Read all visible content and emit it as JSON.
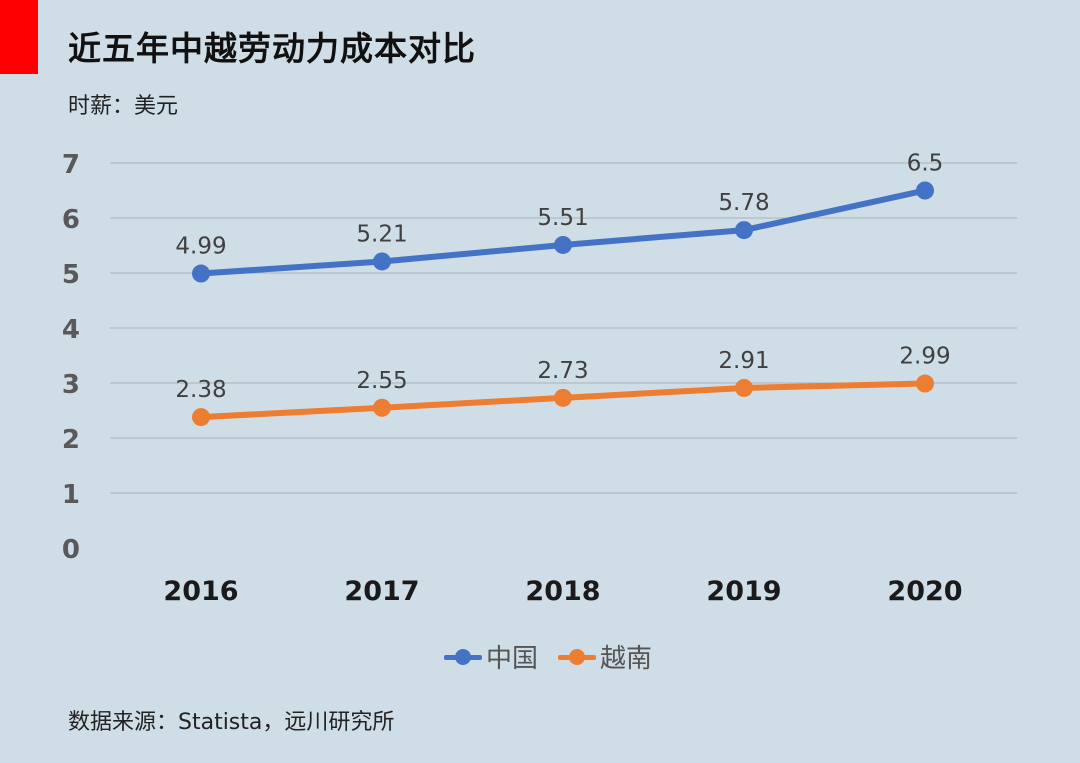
{
  "title": "近五年中越劳动力成本对比",
  "subtitle": "时薪：美元",
  "source": "数据来源：Statista，远川研究所",
  "colors": {
    "accent": "#ff0000",
    "china": "#4472c4",
    "vietnam": "#ed7d31",
    "background": "#cfdde6"
  },
  "chart_data": {
    "type": "line",
    "title": "近五年中越劳动力成本对比",
    "ylabel": "时薪：美元",
    "categories": [
      "2016",
      "2017",
      "2018",
      "2019",
      "2020"
    ],
    "ylim": [
      0,
      7
    ],
    "yticks": [
      "0",
      "1",
      "2",
      "3",
      "4",
      "5",
      "6",
      "7"
    ],
    "grid": true,
    "legend": "bottom",
    "series": [
      {
        "name": "中国",
        "values": [
          4.99,
          5.21,
          5.51,
          5.78,
          6.5
        ],
        "labels": [
          "4.99",
          "5.21",
          "5.51",
          "5.78",
          "6.5"
        ]
      },
      {
        "name": "越南",
        "values": [
          2.38,
          2.55,
          2.73,
          2.91,
          2.99
        ],
        "labels": [
          "2.38",
          "2.55",
          "2.73",
          "2.91",
          "2.99"
        ]
      }
    ]
  }
}
